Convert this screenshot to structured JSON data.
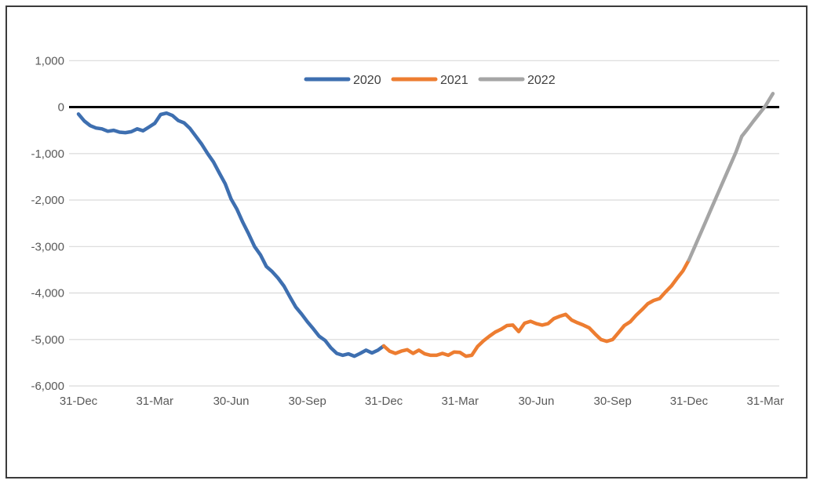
{
  "figure": {
    "border_color": "#3b3b3b",
    "background_color": "#ffffff"
  },
  "chart_data": {
    "type": "line",
    "title": "",
    "xlabel": "",
    "ylabel": "",
    "x_axis": {
      "tick_labels": [
        "31-Dec",
        "31-Mar",
        "30-Jun",
        "30-Sep",
        "31-Dec",
        "31-Mar",
        "30-Jun",
        "30-Sep",
        "31-Dec",
        "31-Mar"
      ],
      "tick_weeks": [
        0,
        13,
        26,
        39,
        52,
        65,
        78,
        91,
        104,
        117
      ]
    },
    "y_axis": {
      "tick_labels": [
        "1,000",
        "0",
        "-1,000",
        "-2,000",
        "-3,000",
        "-4,000",
        "-5,000",
        "-6,000"
      ],
      "tick_values": [
        1000,
        0,
        -1000,
        -2000,
        -3000,
        -4000,
        -5000,
        -6000
      ],
      "min": -6000,
      "max": 1000
    },
    "grid": {
      "show": true,
      "color": "#d9d9d9",
      "zero_line_color": "#000000"
    },
    "legend": {
      "position": "top-center",
      "entries": [
        "2020",
        "2021",
        "2022"
      ]
    },
    "series": [
      {
        "name": "2020",
        "color": "#3e6fb0",
        "points": [
          [
            0,
            -150
          ],
          [
            1,
            -300
          ],
          [
            2,
            -400
          ],
          [
            3,
            -450
          ],
          [
            4,
            -470
          ],
          [
            5,
            -520
          ],
          [
            6,
            -500
          ],
          [
            7,
            -540
          ],
          [
            8,
            -550
          ],
          [
            9,
            -530
          ],
          [
            10,
            -470
          ],
          [
            11,
            -510
          ],
          [
            12,
            -430
          ],
          [
            13,
            -350
          ],
          [
            14,
            -160
          ],
          [
            15,
            -130
          ],
          [
            16,
            -180
          ],
          [
            17,
            -290
          ],
          [
            18,
            -340
          ],
          [
            19,
            -460
          ],
          [
            20,
            -630
          ],
          [
            21,
            -800
          ],
          [
            22,
            -1000
          ],
          [
            23,
            -1180
          ],
          [
            24,
            -1420
          ],
          [
            25,
            -1650
          ],
          [
            26,
            -1980
          ],
          [
            27,
            -2200
          ],
          [
            28,
            -2480
          ],
          [
            29,
            -2730
          ],
          [
            30,
            -3000
          ],
          [
            31,
            -3180
          ],
          [
            32,
            -3430
          ],
          [
            33,
            -3540
          ],
          [
            34,
            -3680
          ],
          [
            35,
            -3850
          ],
          [
            36,
            -4080
          ],
          [
            37,
            -4300
          ],
          [
            38,
            -4450
          ],
          [
            39,
            -4620
          ],
          [
            40,
            -4770
          ],
          [
            41,
            -4930
          ],
          [
            42,
            -5020
          ],
          [
            43,
            -5180
          ],
          [
            44,
            -5300
          ],
          [
            45,
            -5340
          ],
          [
            46,
            -5310
          ],
          [
            47,
            -5360
          ],
          [
            48,
            -5300
          ],
          [
            49,
            -5230
          ],
          [
            50,
            -5290
          ],
          [
            51,
            -5230
          ],
          [
            52,
            -5140
          ]
        ]
      },
      {
        "name": "2021",
        "color": "#ed7d31",
        "points": [
          [
            52,
            -5140
          ],
          [
            53,
            -5250
          ],
          [
            54,
            -5300
          ],
          [
            55,
            -5250
          ],
          [
            56,
            -5220
          ],
          [
            57,
            -5300
          ],
          [
            58,
            -5230
          ],
          [
            59,
            -5310
          ],
          [
            60,
            -5340
          ],
          [
            61,
            -5340
          ],
          [
            62,
            -5300
          ],
          [
            63,
            -5340
          ],
          [
            64,
            -5270
          ],
          [
            65,
            -5280
          ],
          [
            66,
            -5360
          ],
          [
            67,
            -5340
          ],
          [
            68,
            -5150
          ],
          [
            69,
            -5030
          ],
          [
            70,
            -4930
          ],
          [
            71,
            -4840
          ],
          [
            72,
            -4780
          ],
          [
            73,
            -4700
          ],
          [
            74,
            -4690
          ],
          [
            75,
            -4830
          ],
          [
            76,
            -4650
          ],
          [
            77,
            -4610
          ],
          [
            78,
            -4660
          ],
          [
            79,
            -4690
          ],
          [
            80,
            -4660
          ],
          [
            81,
            -4550
          ],
          [
            82,
            -4500
          ],
          [
            83,
            -4460
          ],
          [
            84,
            -4580
          ],
          [
            85,
            -4640
          ],
          [
            86,
            -4690
          ],
          [
            87,
            -4750
          ],
          [
            88,
            -4880
          ],
          [
            89,
            -5000
          ],
          [
            90,
            -5040
          ],
          [
            91,
            -5000
          ],
          [
            92,
            -4850
          ],
          [
            93,
            -4700
          ],
          [
            94,
            -4620
          ],
          [
            95,
            -4480
          ],
          [
            96,
            -4360
          ],
          [
            97,
            -4230
          ],
          [
            98,
            -4160
          ],
          [
            99,
            -4120
          ],
          [
            100,
            -3980
          ],
          [
            101,
            -3850
          ],
          [
            102,
            -3680
          ],
          [
            103,
            -3520
          ],
          [
            104,
            -3290
          ]
        ]
      },
      {
        "name": "2022",
        "color": "#a5a5a5",
        "points": [
          [
            104,
            -3290
          ],
          [
            105,
            -3000
          ],
          [
            106,
            -2710
          ],
          [
            107,
            -2420
          ],
          [
            108,
            -2130
          ],
          [
            109,
            -1840
          ],
          [
            110,
            -1550
          ],
          [
            111,
            -1260
          ],
          [
            112,
            -970
          ],
          [
            113,
            -630
          ],
          [
            114,
            -470
          ],
          [
            115,
            -300
          ],
          [
            116,
            -140
          ],
          [
            117,
            20
          ],
          [
            118.3,
            290
          ]
        ]
      }
    ]
  }
}
